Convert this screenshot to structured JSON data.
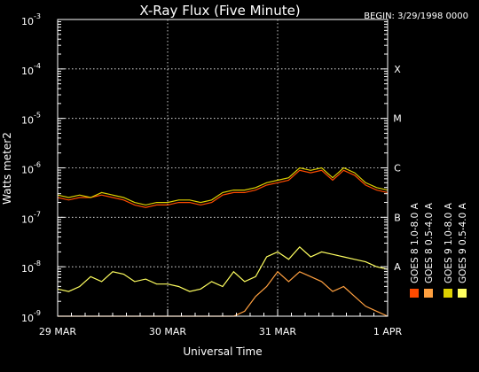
{
  "chart_data": {
    "type": "line",
    "title": "X-Ray Flux (Five Minute)",
    "begin_label": "BEGIN: 3/29/1998 0000",
    "xlabel": "Universal Time",
    "ylabel": "Watts meter2",
    "log_y": true,
    "ylim_exp": [
      -9,
      -3
    ],
    "y_ticks": [
      {
        "base": "10",
        "exp": "-9",
        "value": -9
      },
      {
        "base": "10",
        "exp": "-8",
        "value": -8
      },
      {
        "base": "10",
        "exp": "-7",
        "value": -7
      },
      {
        "base": "10",
        "exp": "-6",
        "value": -6
      },
      {
        "base": "10",
        "exp": "-5",
        "value": -5
      },
      {
        "base": "10",
        "exp": "-4",
        "value": -4
      },
      {
        "base": "10",
        "exp": "-3",
        "value": -3
      }
    ],
    "xlim_days": [
      0,
      3
    ],
    "x_ticks": [
      {
        "label": "29 MAR",
        "value": 0
      },
      {
        "label": "30 MAR",
        "value": 1
      },
      {
        "label": "31 MAR",
        "value": 2
      },
      {
        "label": "1 APR",
        "value": 3
      }
    ],
    "flare_classes": [
      {
        "label": "X",
        "value": -4
      },
      {
        "label": "M",
        "value": -5
      },
      {
        "label": "C",
        "value": -6
      },
      {
        "label": "B",
        "value": -7
      },
      {
        "label": "A",
        "value": -8
      }
    ],
    "event_markers_days": [
      1.0,
      2.0
    ],
    "grid": true,
    "legend_position": "right, vertical",
    "x": [
      0,
      0.1,
      0.2,
      0.3,
      0.4,
      0.5,
      0.6,
      0.7,
      0.8,
      0.9,
      1.0,
      1.1,
      1.2,
      1.3,
      1.4,
      1.5,
      1.6,
      1.7,
      1.8,
      1.9,
      2.0,
      2.1,
      2.2,
      2.3,
      2.4,
      2.5,
      2.6,
      2.7,
      2.8,
      2.9,
      3.0
    ],
    "series": [
      {
        "name": "GOES 8 1.0-8.0 A",
        "color": "#ff4b00",
        "values": [
          -6.6,
          -6.65,
          -6.6,
          -6.6,
          -6.55,
          -6.6,
          -6.65,
          -6.75,
          -6.8,
          -6.75,
          -6.75,
          -6.7,
          -6.7,
          -6.75,
          -6.7,
          -6.55,
          -6.5,
          -6.5,
          -6.45,
          -6.35,
          -6.3,
          -6.25,
          -6.05,
          -6.1,
          -6.05,
          -6.25,
          -6.05,
          -6.15,
          -6.35,
          -6.45,
          -6.5
        ]
      },
      {
        "name": "GOES 8 0.5-4.0 A",
        "color": "#ffa040",
        "values": [
          -9.0,
          -9.0,
          -9.0,
          -9.0,
          -9.0,
          -9.0,
          -9.0,
          -9.0,
          -9.0,
          -9.0,
          -9.0,
          -9.0,
          -9.0,
          -9.0,
          -9.0,
          -9.0,
          -9.0,
          -8.9,
          -8.6,
          -8.4,
          -8.1,
          -8.3,
          -8.1,
          -8.2,
          -8.3,
          -8.5,
          -8.4,
          -8.6,
          -8.8,
          -8.9,
          -9.0
        ]
      },
      {
        "name": "GOES 9 1.0-8.0 A",
        "color": "#ddd000",
        "values": [
          -6.55,
          -6.6,
          -6.55,
          -6.6,
          -6.5,
          -6.55,
          -6.6,
          -6.7,
          -6.75,
          -6.7,
          -6.7,
          -6.65,
          -6.65,
          -6.7,
          -6.65,
          -6.5,
          -6.45,
          -6.45,
          -6.4,
          -6.3,
          -6.25,
          -6.2,
          -6.0,
          -6.05,
          -6.0,
          -6.2,
          -6.0,
          -6.1,
          -6.3,
          -6.4,
          -6.45
        ]
      },
      {
        "name": "GOES 9 0.5-4.0 A",
        "color": "#ffff60",
        "values": [
          -8.45,
          -8.5,
          -8.4,
          -8.2,
          -8.3,
          -8.1,
          -8.15,
          -8.3,
          -8.25,
          -8.35,
          -8.35,
          -8.4,
          -8.5,
          -8.45,
          -8.3,
          -8.4,
          -8.1,
          -8.3,
          -8.2,
          -7.8,
          -7.7,
          -7.85,
          -7.6,
          -7.8,
          -7.7,
          -7.75,
          -7.8,
          -7.85,
          -7.9,
          -8.0,
          -8.05
        ]
      }
    ]
  }
}
